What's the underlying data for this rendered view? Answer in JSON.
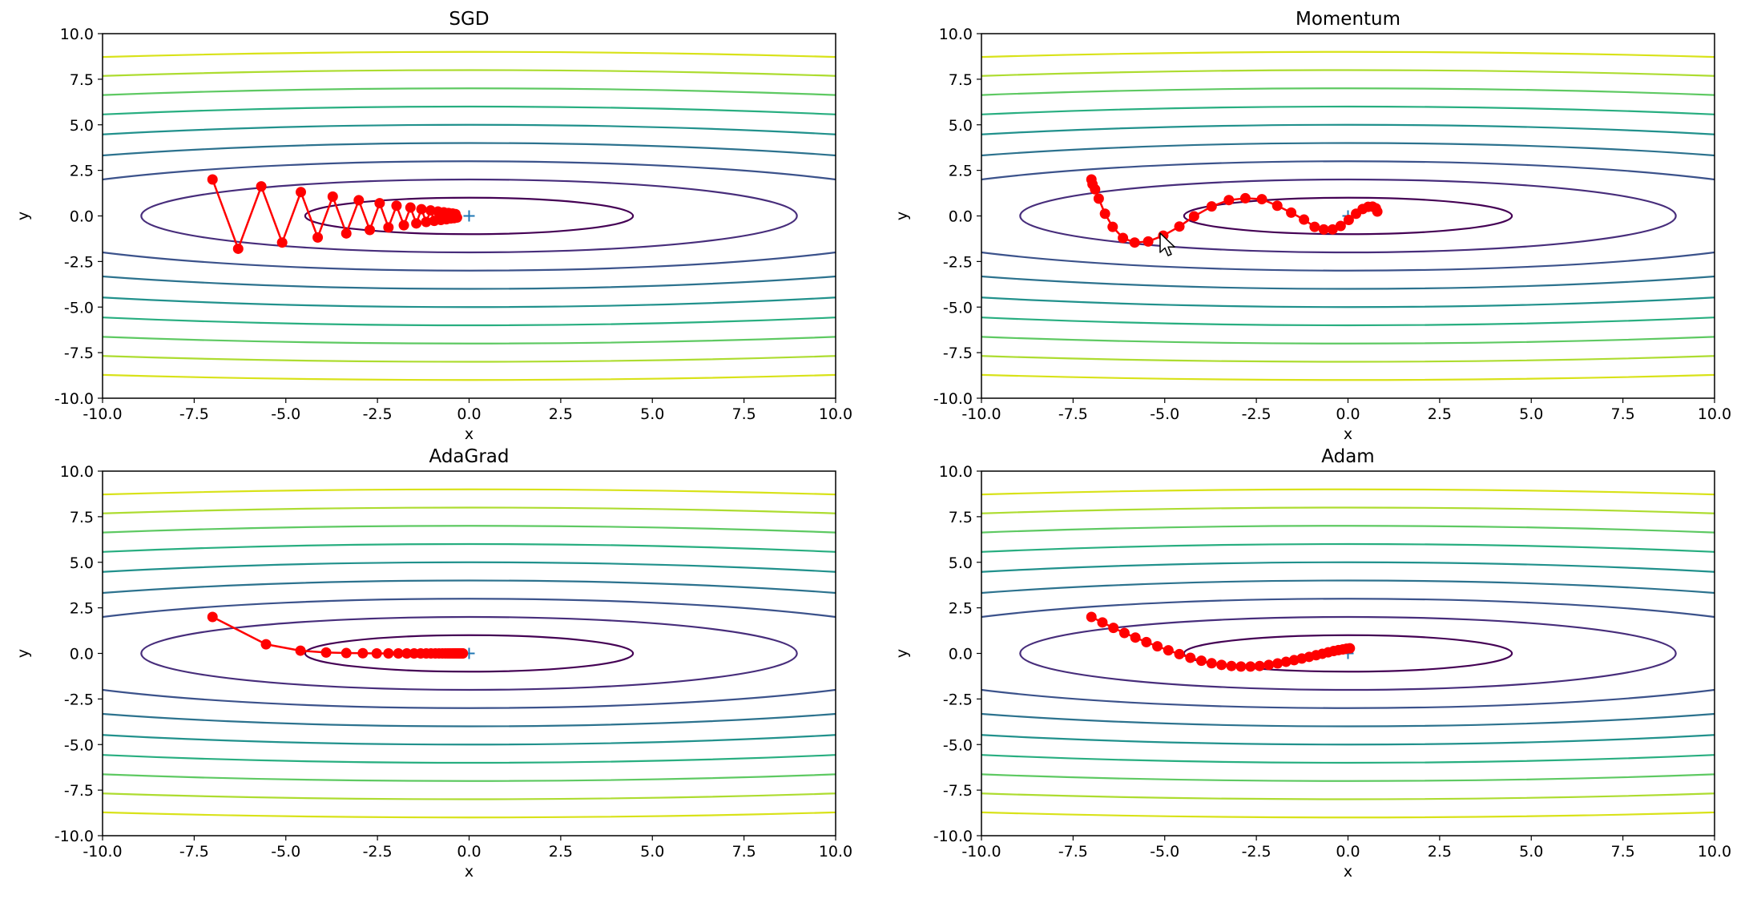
{
  "window": {
    "title": ""
  },
  "contour": {
    "levels": [
      1,
      4,
      9,
      16,
      25,
      36,
      49,
      64,
      81
    ],
    "colors": [
      "#440154",
      "#472d7b",
      "#3b528b",
      "#2c728e",
      "#21918c",
      "#28ae80",
      "#5ec962",
      "#addc30",
      "#d8e219"
    ]
  },
  "style": {
    "path_color": "#ff0000",
    "minimum_marker_color": "#1f77b4",
    "marker": "circle",
    "minimum_marker": "plus"
  },
  "axis_labels": {
    "xlabel": "x",
    "ylabel": "y"
  },
  "chart_data": [
    {
      "type": "line",
      "title": "SGD",
      "xlabel": "x",
      "ylabel": "y",
      "xlim": [
        -10,
        10
      ],
      "ylim": [
        -10,
        10
      ],
      "xticks": [
        "-10.0",
        "-7.5",
        "-5.0",
        "-2.5",
        "0.0",
        "2.5",
        "5.0",
        "7.5",
        "10.0"
      ],
      "yticks": [
        "-10.0",
        "-7.5",
        "-5.0",
        "-2.5",
        "0.0",
        "2.5",
        "5.0",
        "7.5",
        "10.0"
      ],
      "minimum": [
        0,
        0
      ],
      "series": [
        {
          "x": [
            -7.0,
            -6.3,
            -5.67,
            -5.1,
            -4.59,
            -4.13,
            -3.72,
            -3.35,
            -3.01,
            -2.71,
            -2.44,
            -2.2,
            -1.98,
            -1.78,
            -1.6,
            -1.44,
            -1.3,
            -1.17,
            -1.05,
            -0.95,
            -0.85,
            -0.77,
            -0.69,
            -0.62,
            -0.56,
            -0.5,
            -0.45,
            -0.41,
            -0.37,
            -0.33
          ],
          "y": [
            2.0,
            -1.8,
            1.62,
            -1.46,
            1.31,
            -1.18,
            1.06,
            -0.96,
            0.86,
            -0.77,
            0.7,
            -0.63,
            0.56,
            -0.51,
            0.46,
            -0.41,
            0.37,
            -0.33,
            0.3,
            -0.27,
            0.24,
            -0.22,
            0.2,
            -0.18,
            0.16,
            -0.14,
            0.13,
            -0.12,
            0.1,
            -0.09
          ]
        }
      ]
    },
    {
      "type": "line",
      "title": "Momentum",
      "xlabel": "x",
      "ylabel": "y",
      "xlim": [
        -10,
        10
      ],
      "ylim": [
        -10,
        10
      ],
      "xticks": [
        "-10.0",
        "-7.5",
        "-5.0",
        "-2.5",
        "0.0",
        "2.5",
        "5.0",
        "7.5",
        "10.0"
      ],
      "yticks": [
        "-10.0",
        "-7.5",
        "-5.0",
        "-2.5",
        "0.0",
        "2.5",
        "5.0",
        "7.5",
        "10.0"
      ],
      "minimum": [
        0,
        0
      ],
      "series": [
        {
          "x": [
            -7.0,
            -6.97,
            -6.9,
            -6.8,
            -6.63,
            -6.42,
            -6.14,
            -5.82,
            -5.45,
            -5.04,
            -4.6,
            -4.2,
            -3.72,
            -3.25,
            -2.8,
            -2.35,
            -1.93,
            -1.55,
            -1.2,
            -0.91,
            -0.66,
            -0.42,
            -0.2,
            0.02,
            0.22,
            0.4,
            0.55,
            0.67,
            0.76,
            0.8
          ],
          "y": [
            2.0,
            1.74,
            1.46,
            0.95,
            0.12,
            -0.6,
            -1.21,
            -1.46,
            -1.4,
            -1.08,
            -0.58,
            -0.02,
            0.52,
            0.87,
            0.97,
            0.92,
            0.56,
            0.18,
            -0.2,
            -0.6,
            -0.74,
            -0.74,
            -0.55,
            -0.22,
            0.12,
            0.38,
            0.5,
            0.51,
            0.42,
            0.24
          ]
        }
      ]
    },
    {
      "type": "line",
      "title": "AdaGrad",
      "xlabel": "x",
      "ylabel": "y",
      "xlim": [
        -10,
        10
      ],
      "ylim": [
        -10,
        10
      ],
      "xticks": [
        "-10.0",
        "-7.5",
        "-5.0",
        "-2.5",
        "0.0",
        "2.5",
        "5.0",
        "7.5",
        "10.0"
      ],
      "yticks": [
        "-10.0",
        "-7.5",
        "-5.0",
        "-2.5",
        "0.0",
        "2.5",
        "5.0",
        "7.5",
        "10.0"
      ],
      "minimum": [
        0,
        0
      ],
      "series": [
        {
          "x": [
            -7.0,
            -5.54,
            -4.6,
            -3.9,
            -3.35,
            -2.9,
            -2.52,
            -2.2,
            -1.93,
            -1.7,
            -1.5,
            -1.32,
            -1.17,
            -1.04,
            -0.92,
            -0.82,
            -0.73,
            -0.65,
            -0.58,
            -0.52,
            -0.46,
            -0.41,
            -0.37,
            -0.33,
            -0.29,
            -0.26,
            -0.23,
            -0.21,
            -0.19,
            -0.17
          ],
          "y": [
            2.0,
            0.5,
            0.15,
            0.05,
            0.02,
            0.01,
            0.0,
            0.0,
            0.0,
            0.0,
            0.0,
            0.0,
            0.0,
            0.0,
            0.0,
            0.0,
            0.0,
            0.0,
            0.0,
            0.0,
            0.0,
            0.0,
            0.0,
            0.0,
            0.0,
            0.0,
            0.0,
            0.0,
            0.0,
            0.0
          ]
        }
      ]
    },
    {
      "type": "line",
      "title": "Adam",
      "xlabel": "x",
      "ylabel": "y",
      "xlim": [
        -10,
        10
      ],
      "ylim": [
        -10,
        10
      ],
      "xticks": [
        "-10.0",
        "-7.5",
        "-5.0",
        "-2.5",
        "0.0",
        "2.5",
        "5.0",
        "7.5",
        "10.0"
      ],
      "yticks": [
        "-10.0",
        "-7.5",
        "-5.0",
        "-2.5",
        "0.0",
        "2.5",
        "5.0",
        "7.5",
        "10.0"
      ],
      "minimum": [
        0,
        0
      ],
      "series": [
        {
          "x": [
            -7.0,
            -6.7,
            -6.4,
            -6.1,
            -5.8,
            -5.5,
            -5.2,
            -4.9,
            -4.6,
            -4.3,
            -4.0,
            -3.72,
            -3.45,
            -3.18,
            -2.92,
            -2.66,
            -2.41,
            -2.16,
            -1.92,
            -1.69,
            -1.47,
            -1.26,
            -1.06,
            -0.87,
            -0.7,
            -0.54,
            -0.39,
            -0.26,
            -0.14,
            -0.04,
            0.05
          ],
          "y": [
            2.0,
            1.7,
            1.4,
            1.12,
            0.87,
            0.62,
            0.39,
            0.17,
            -0.04,
            -0.24,
            -0.4,
            -0.54,
            -0.63,
            -0.69,
            -0.72,
            -0.72,
            -0.69,
            -0.63,
            -0.55,
            -0.46,
            -0.37,
            -0.28,
            -0.19,
            -0.1,
            -0.02,
            0.06,
            0.13,
            0.18,
            0.22,
            0.26,
            0.28
          ]
        }
      ]
    }
  ]
}
